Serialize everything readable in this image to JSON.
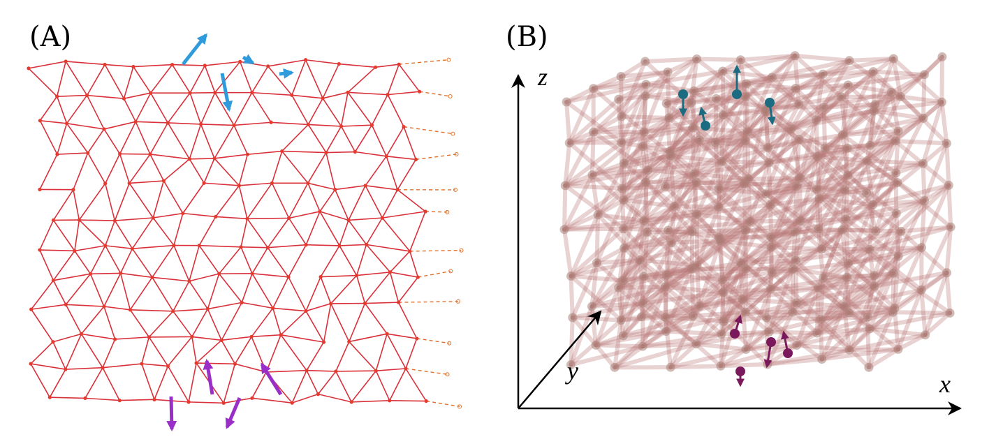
{
  "panels": [
    {
      "label": "(A)"
    },
    {
      "label": "(B)",
      "axes": {
        "x": "x",
        "y": "y",
        "z": "z"
      }
    }
  ]
}
